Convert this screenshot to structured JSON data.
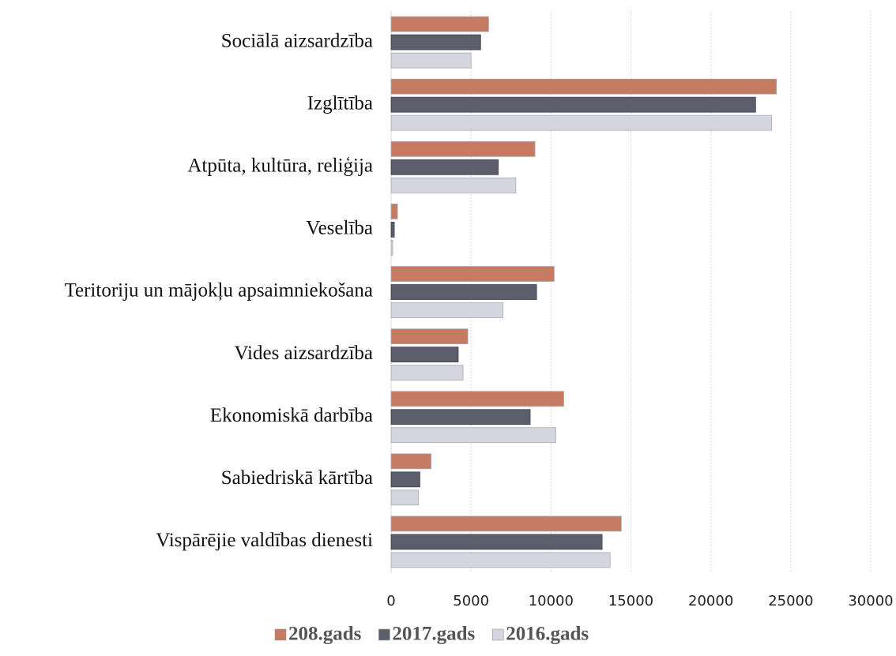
{
  "chart_data": {
    "type": "barh",
    "categories": [
      "Sociālā aizsardzība",
      "Izglītība",
      "Atpūta, kultūra, reliģija",
      "Veselība",
      "Teritoriju un mājokļu apsaimniekošana",
      "Vides aizsardzība",
      "Ekonomiskā darbība",
      "Sabiedriskā kārtība",
      "Vispārējie valdības dienesti"
    ],
    "series": [
      {
        "name": "208.gads",
        "color": "#c57a62",
        "values": [
          6100,
          24100,
          9000,
          400,
          10200,
          4800,
          10800,
          2500,
          14400
        ]
      },
      {
        "name": "2017.gads",
        "color": "#5d5e6c",
        "values": [
          5600,
          22800,
          6700,
          200,
          9100,
          4200,
          8700,
          1800,
          13200
        ]
      },
      {
        "name": "2016.gads",
        "color": "#d4d5de",
        "values": [
          5000,
          23800,
          7800,
          100,
          7000,
          4500,
          10300,
          1700,
          13700
        ]
      }
    ],
    "xlim": [
      0,
      30000
    ],
    "xticks": [
      0,
      5000,
      10000,
      15000,
      20000,
      25000,
      30000
    ],
    "grid": true
  }
}
